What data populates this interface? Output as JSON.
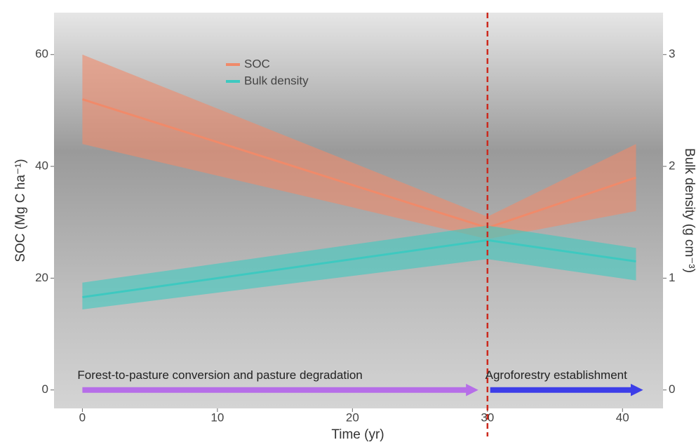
{
  "chart_data": {
    "type": "line",
    "x": [
      0,
      30,
      41
    ],
    "series": [
      {
        "name": "SOC",
        "color": "#f08a6a",
        "values": [
          52,
          29,
          38
        ],
        "lower": [
          44,
          27,
          32
        ],
        "upper": [
          60,
          31,
          44
        ]
      },
      {
        "name": "Bulk density",
        "color": "#3ec9c0",
        "axis": "y2",
        "values": [
          0.83,
          1.34,
          1.15
        ],
        "lower": [
          0.72,
          1.17,
          0.98
        ],
        "upper": [
          0.96,
          1.47,
          1.27
        ]
      }
    ],
    "xlabel": "Time (yr)",
    "ylabel": "SOC (Mg C ha⁻¹)",
    "y2label": "Bulk density (g cm⁻³)",
    "xlim": [
      -2.1,
      43
    ],
    "xticks": [
      0,
      10,
      20,
      30,
      40
    ],
    "ylim": [
      -3.3,
      67.5
    ],
    "yticks": [
      0,
      20,
      40,
      60
    ],
    "y2lim": [
      -0.165,
      3.375
    ],
    "y2ticks": [
      0,
      1,
      2,
      3
    ],
    "vline": {
      "x": 30,
      "color": "#cc2a1e"
    },
    "annotations": [
      {
        "text": "Forest-to-pasture conversion and pasture degradation",
        "x": [
          0,
          29.8
        ],
        "color": "#b66ee8"
      },
      {
        "text": "Agroforestry establishment",
        "x": [
          30.2,
          42
        ],
        "color": "#3d3ee8"
      }
    ],
    "legend": "top"
  }
}
